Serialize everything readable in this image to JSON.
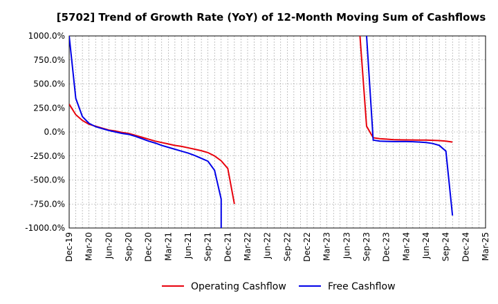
{
  "chart_data": {
    "type": "line",
    "title": "[5702]  Trend of Growth Rate (YoY) of 12-Month Moving Sum of Cashflows",
    "xlabel": "",
    "ylabel": "",
    "ylim": [
      -1000,
      1000
    ],
    "xlim": [
      "2019-12",
      "2025-03"
    ],
    "y_ticks": [
      "1000.0%",
      "750.0%",
      "500.0%",
      "250.0%",
      "0.0%",
      "-250.0%",
      "-500.0%",
      "-750.0%",
      "-1000.0%"
    ],
    "x_ticks": [
      "Dec-19",
      "Mar-20",
      "Jun-20",
      "Sep-20",
      "Dec-20",
      "Mar-21",
      "Jun-21",
      "Sep-21",
      "Dec-21",
      "Mar-22",
      "Jun-22",
      "Sep-22",
      "Dec-22",
      "Mar-23",
      "Jun-23",
      "Sep-23",
      "Dec-23",
      "Mar-24",
      "Jun-24",
      "Sep-24",
      "Dec-24",
      "Mar-25"
    ],
    "grid": true,
    "legend_position": "bottom",
    "series": [
      {
        "name": "Operating Cashflow",
        "color": "#e8000b",
        "segments": [
          [
            [
              "2019-12",
              290
            ],
            [
              "2020-01",
              180
            ],
            [
              "2020-02",
              120
            ],
            [
              "2020-03",
              80
            ],
            [
              "2020-04",
              60
            ],
            [
              "2020-05",
              40
            ],
            [
              "2020-06",
              20
            ],
            [
              "2020-07",
              10
            ],
            [
              "2020-08",
              -5
            ],
            [
              "2020-09",
              -15
            ],
            [
              "2020-10",
              -35
            ],
            [
              "2020-11",
              -55
            ],
            [
              "2020-12",
              -75
            ],
            [
              "2021-01",
              -95
            ],
            [
              "2021-02",
              -110
            ],
            [
              "2021-03",
              -125
            ],
            [
              "2021-04",
              -140
            ],
            [
              "2021-05",
              -150
            ],
            [
              "2021-06",
              -165
            ],
            [
              "2021-07",
              -180
            ],
            [
              "2021-08",
              -195
            ],
            [
              "2021-09",
              -215
            ],
            [
              "2021-10",
              -250
            ],
            [
              "2021-11",
              -300
            ],
            [
              "2021-12",
              -380
            ],
            [
              "2022-01",
              -750
            ]
          ],
          [
            [
              "2023-08",
              1000
            ],
            [
              "2023-09",
              60
            ],
            [
              "2023-10",
              -60
            ],
            [
              "2023-11",
              -70
            ],
            [
              "2023-12",
              -75
            ],
            [
              "2024-01",
              -80
            ],
            [
              "2024-02",
              -82
            ],
            [
              "2024-03",
              -83
            ],
            [
              "2024-04",
              -84
            ],
            [
              "2024-05",
              -85
            ],
            [
              "2024-06",
              -85
            ],
            [
              "2024-07",
              -87
            ],
            [
              "2024-08",
              -90
            ],
            [
              "2024-09",
              -95
            ],
            [
              "2024-10",
              -105
            ]
          ]
        ]
      },
      {
        "name": "Free Cashflow",
        "color": "#0000e8",
        "segments": [
          [
            [
              "2019-12",
              1000
            ],
            [
              "2020-01",
              350
            ],
            [
              "2020-02",
              160
            ],
            [
              "2020-03",
              90
            ],
            [
              "2020-04",
              55
            ],
            [
              "2020-05",
              35
            ],
            [
              "2020-06",
              15
            ],
            [
              "2020-07",
              0
            ],
            [
              "2020-08",
              -15
            ],
            [
              "2020-09",
              -25
            ],
            [
              "2020-10",
              -45
            ],
            [
              "2020-11",
              -70
            ],
            [
              "2020-12",
              -95
            ],
            [
              "2021-01",
              -115
            ],
            [
              "2021-02",
              -140
            ],
            [
              "2021-03",
              -160
            ],
            [
              "2021-04",
              -180
            ],
            [
              "2021-05",
              -200
            ],
            [
              "2021-06",
              -220
            ],
            [
              "2021-07",
              -245
            ],
            [
              "2021-08",
              -275
            ],
            [
              "2021-09",
              -305
            ],
            [
              "2021-10",
              -400
            ],
            [
              "2021-11",
              -700
            ],
            [
              "2021-11",
              -1000
            ]
          ],
          [
            [
              "2023-09",
              1000
            ],
            [
              "2023-10",
              -85
            ],
            [
              "2023-11",
              -95
            ],
            [
              "2023-12",
              -98
            ],
            [
              "2024-01",
              -100
            ],
            [
              "2024-02",
              -100
            ],
            [
              "2024-03",
              -100
            ],
            [
              "2024-04",
              -102
            ],
            [
              "2024-05",
              -105
            ],
            [
              "2024-06",
              -110
            ],
            [
              "2024-07",
              -120
            ],
            [
              "2024-08",
              -140
            ],
            [
              "2024-09",
              -200
            ],
            [
              "2024-10",
              -870
            ]
          ]
        ]
      }
    ]
  }
}
